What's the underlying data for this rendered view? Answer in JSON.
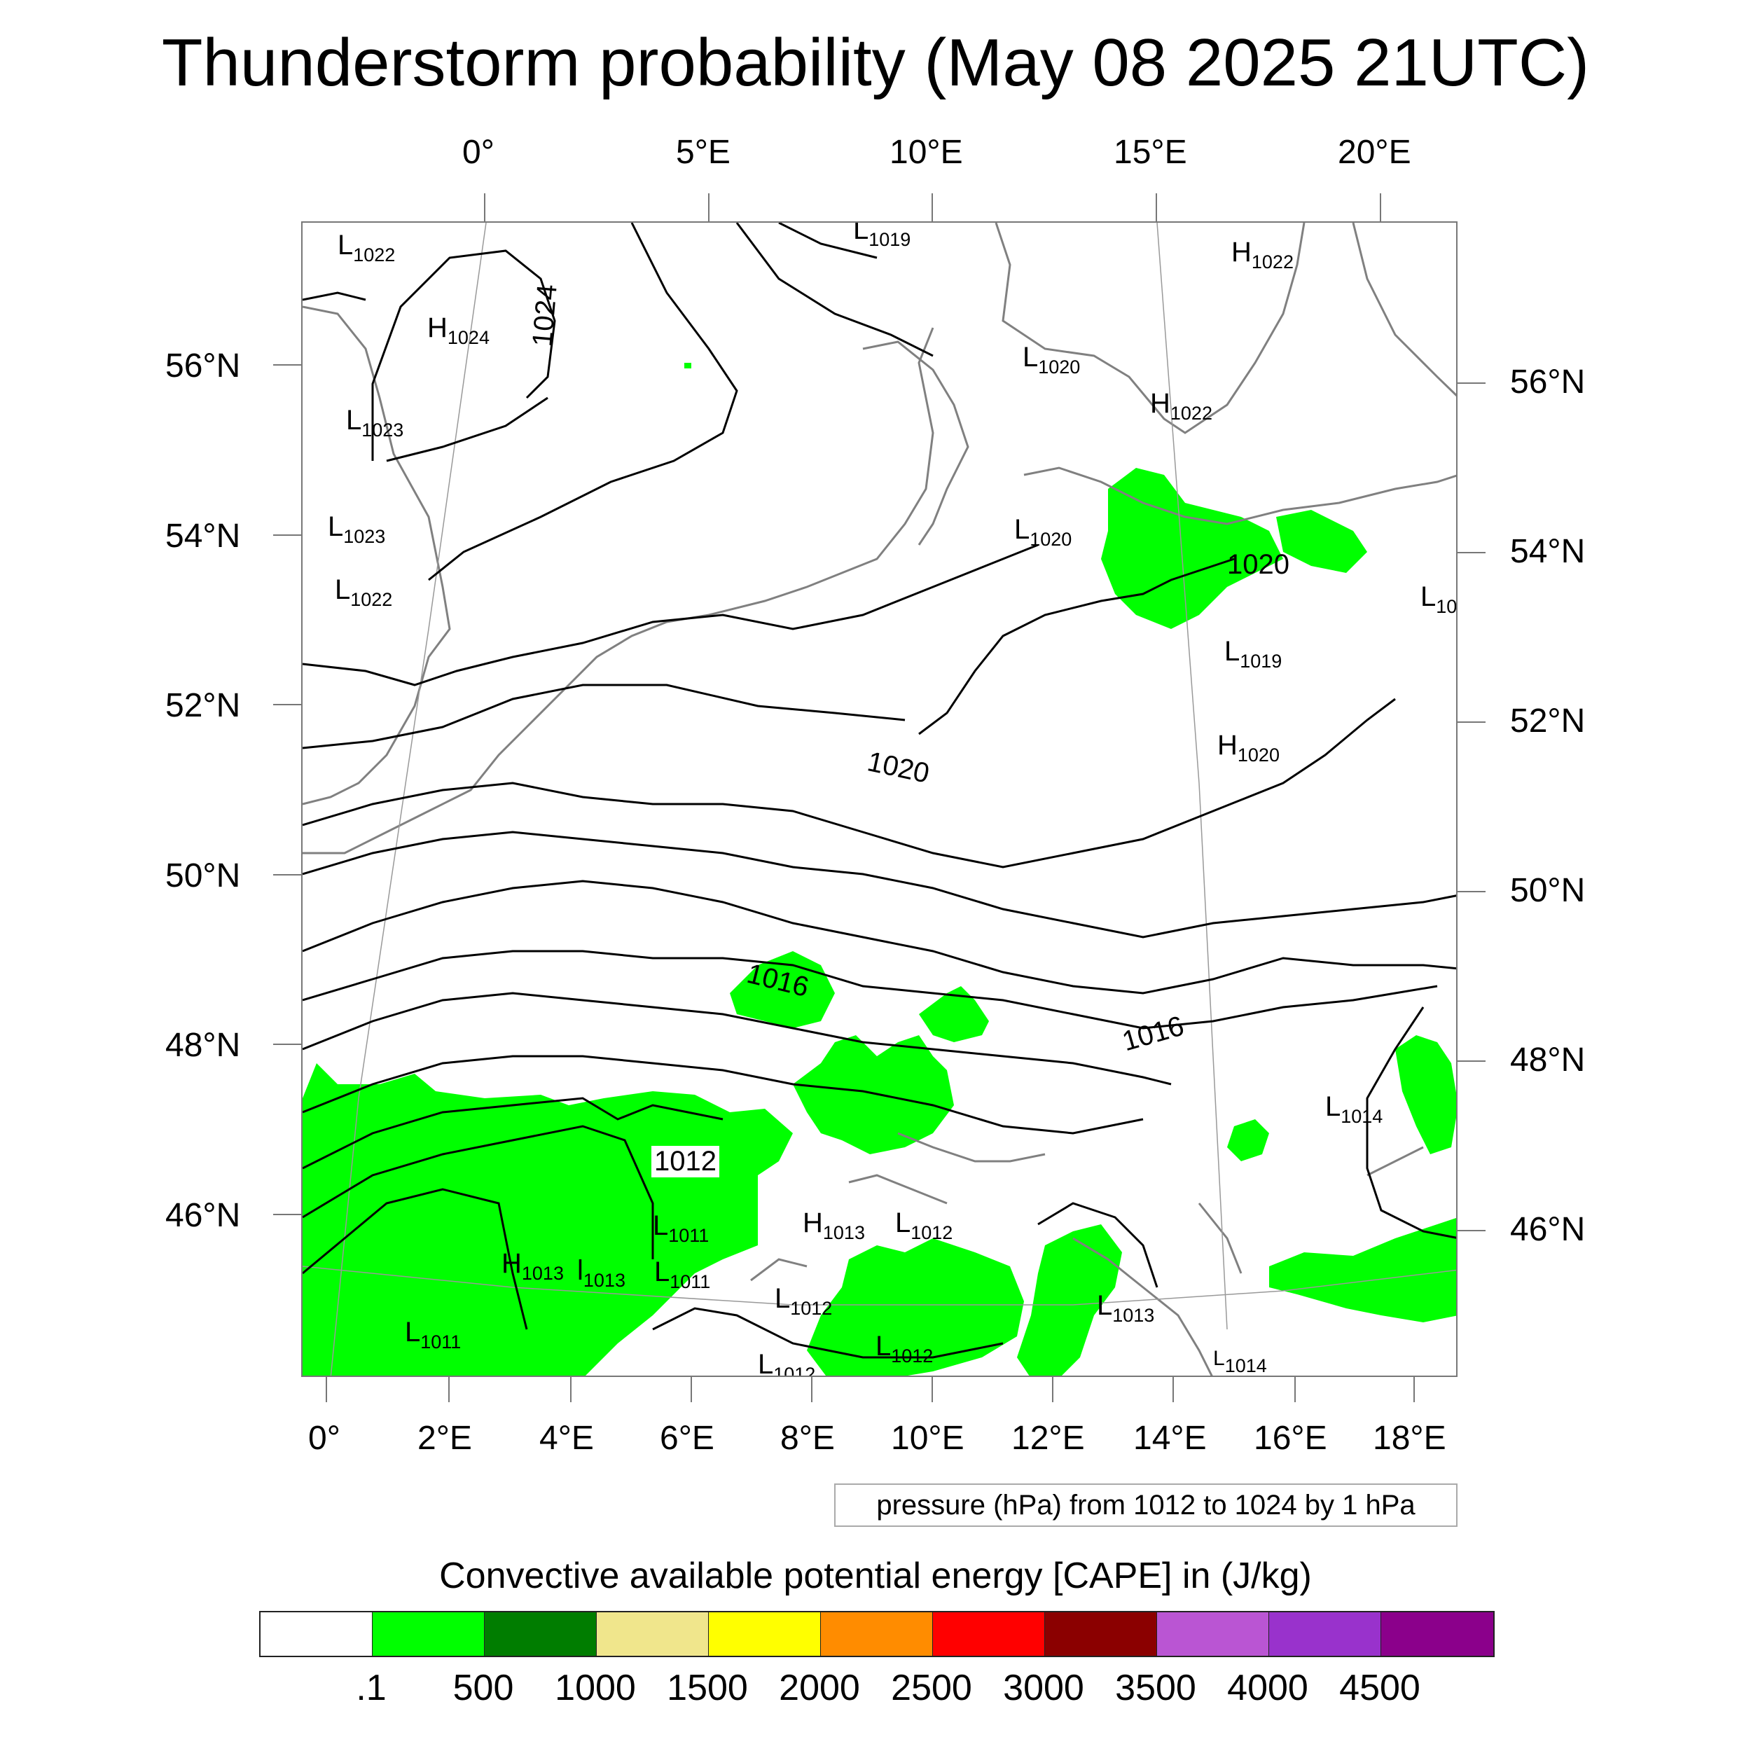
{
  "title": "Thunderstorm probability (May 08 2025 21UTC)",
  "top_lon_labels": [
    "0°",
    "5°E",
    "10°E",
    "15°E",
    "20°E"
  ],
  "bottom_lon_labels": [
    "0°",
    "2°E",
    "4°E",
    "6°E",
    "8°E",
    "10°E",
    "12°E",
    "14°E",
    "16°E",
    "18°E"
  ],
  "left_lat_labels": [
    "56°N",
    "54°N",
    "52°N",
    "50°N",
    "48°N",
    "46°N"
  ],
  "right_lat_labels": [
    "56°N",
    "54°N",
    "52°N",
    "50°N",
    "48°N",
    "46°N"
  ],
  "pressure_centers": [
    {
      "t": "L",
      "v": "1022"
    },
    {
      "t": "H",
      "v": "1024"
    },
    {
      "t": "L",
      "v": "1023"
    },
    {
      "t": "L",
      "v": "1023"
    },
    {
      "t": "L",
      "v": "1022"
    },
    {
      "t": "L",
      "v": "1019"
    },
    {
      "t": "H",
      "v": "1022"
    },
    {
      "t": "L",
      "v": "1020"
    },
    {
      "t": "H",
      "v": "1022"
    },
    {
      "t": "L",
      "v": "1020"
    },
    {
      "t": "L",
      "v": "1019"
    },
    {
      "t": "L",
      "v": "10"
    },
    {
      "t": "H",
      "v": "1020"
    },
    {
      "t": "L",
      "v": "1014"
    },
    {
      "t": "L",
      "v": "1011"
    },
    {
      "t": "H",
      "v": "1013"
    },
    {
      "t": "L",
      "v": "1012"
    },
    {
      "t": "H",
      "v": "1013"
    },
    {
      "t": "l",
      "v": "1013"
    },
    {
      "t": "L",
      "v": "1011"
    },
    {
      "t": "L",
      "v": "1012"
    },
    {
      "t": "L",
      "v": "1013"
    },
    {
      "t": "L",
      "v": "1011"
    },
    {
      "t": "L",
      "v": "1012"
    },
    {
      "t": "L",
      "v": "1012"
    },
    {
      "t": "L",
      "v": "1014"
    }
  ],
  "contour_labels": [
    "1024",
    "1020",
    "1020",
    "1016",
    "1016",
    "1012"
  ],
  "pressure_note": "pressure (hPa) from 1012 to 1024 by 1 hPa",
  "colorbar": {
    "title": "Convective available potential energy [CAPE] in (J/kg)",
    "labels": [
      ".1",
      "500",
      "1000",
      "1500",
      "2000",
      "2500",
      "3000",
      "3500",
      "4000",
      "4500"
    ],
    "colors": [
      "#ffffff",
      "#00ff00",
      "#007d00",
      "#f0e68c",
      "#ffff00",
      "#ff8c00",
      "#ff0000",
      "#8b0000",
      "#ba55d3",
      "#9932cc",
      "#8b008b"
    ]
  }
}
